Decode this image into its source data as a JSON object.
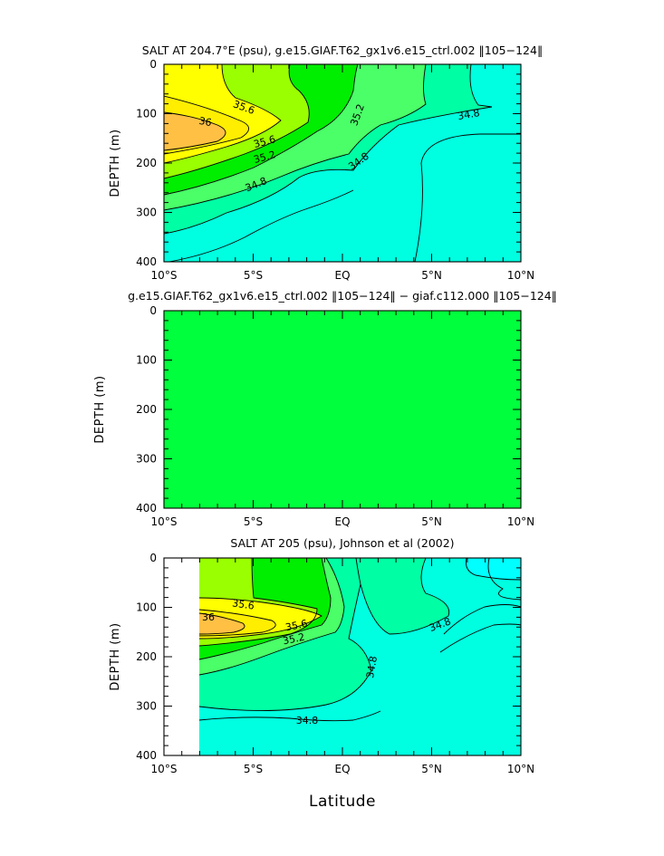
{
  "chart_data": [
    {
      "type": "contour",
      "title": "SALT AT 204.7°E (psu), g.e15.GIAF.T62_gx1v6.e15_ctrl.002 ‖105−124‖",
      "ylabel": "DEPTH (m)",
      "xlabel": "",
      "x_ticks": [
        "10°S",
        "5°S",
        "EQ",
        "5°N",
        "10°N"
      ],
      "y_ticks": [
        "0",
        "100",
        "200",
        "300",
        "400"
      ],
      "xlim": [
        -10,
        10
      ],
      "ylim": [
        400,
        0
      ],
      "contour_labels": [
        "35.6",
        "36",
        "35.6",
        "35.2",
        "34.8",
        "35.2",
        "34.8",
        "34.8"
      ],
      "levels": [
        34.8,
        35.0,
        35.2,
        35.4,
        35.6,
        35.8,
        36.0
      ],
      "colors": {
        "lt34.8": "#00ffe0",
        "34.8-35.0": "#00ffa5",
        "35.0-35.2": "#4aff68",
        "35.2-35.4": "#00ee00",
        "35.4-35.6": "#9aff00",
        "35.6-35.8": "#ffff00",
        "35.8-36.0": "#ffee00",
        "gt36.0": "#ffc044"
      }
    },
    {
      "type": "contour",
      "title": "g.e15.GIAF.T62_gx1v6.e15_ctrl.002 ‖105−124‖ − giaf.c112.000 ‖105−124‖",
      "ylabel": "DEPTH (m)",
      "xlabel": "",
      "x_ticks": [
        "10°S",
        "5°S",
        "EQ",
        "5°N",
        "10°N"
      ],
      "y_ticks": [
        "0",
        "100",
        "200",
        "300",
        "400"
      ],
      "xlim": [
        -10,
        10
      ],
      "ylim": [
        400,
        0
      ],
      "fill_color": "#00ff3c"
    },
    {
      "type": "contour",
      "title": "SALT AT 205 (psu), Johnson et al (2002)",
      "ylabel": "DEPTH (m)",
      "xlabel": "Latitude",
      "x_ticks": [
        "10°S",
        "5°S",
        "EQ",
        "5°N",
        "10°N"
      ],
      "y_ticks": [
        "0",
        "100",
        "200",
        "300",
        "400"
      ],
      "xlim": [
        -10,
        10
      ],
      "ylim": [
        400,
        0
      ],
      "data_xlim": [
        -8,
        10
      ],
      "contour_labels": [
        "35.6",
        "36",
        "35.6",
        "35.2",
        "34.8",
        "34.8",
        "34.8"
      ],
      "colors": {
        "lt34.6": "#00ffff",
        "lt34.8": "#00ffe0",
        "34.8-35.0": "#00ffa5",
        "35.0-35.2": "#4aff68",
        "35.2-35.4": "#00ee00",
        "35.4-35.6": "#9aff00",
        "35.6-35.8": "#ffff00",
        "35.8-36.0": "#ffee00",
        "gt36.0": "#ffc044"
      }
    }
  ]
}
